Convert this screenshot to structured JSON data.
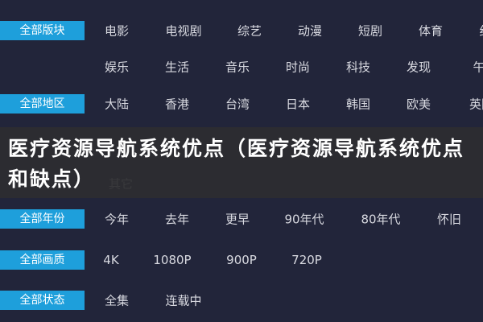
{
  "rows": [
    {
      "label": "全部版块",
      "items": [
        "电影",
        "电视剧",
        "综艺",
        "动漫",
        "短剧",
        "体育",
        "纪"
      ]
    },
    {
      "items": [
        "娱乐",
        "生活",
        "音乐",
        "时尚",
        "科技",
        "发现",
        "午"
      ]
    },
    {
      "label": "全部地区",
      "items": [
        "大陆",
        "香港",
        "台湾",
        "日本",
        "韩国",
        "欧美",
        "英国"
      ]
    },
    {
      "items": [
        "其它"
      ]
    },
    {
      "label": "全部年份",
      "items": [
        "今年",
        "去年",
        "更早",
        "90年代",
        "80年代",
        "怀旧"
      ]
    },
    {
      "label": "全部画质",
      "items": [
        "4K",
        "1080P",
        "900P",
        "720P"
      ]
    },
    {
      "label": "全部状态",
      "items": [
        "全集",
        "连载中"
      ]
    }
  ],
  "overlay": {
    "title": "医疗资源导航系统优点（医疗资源导航系统优点和缺点）"
  }
}
